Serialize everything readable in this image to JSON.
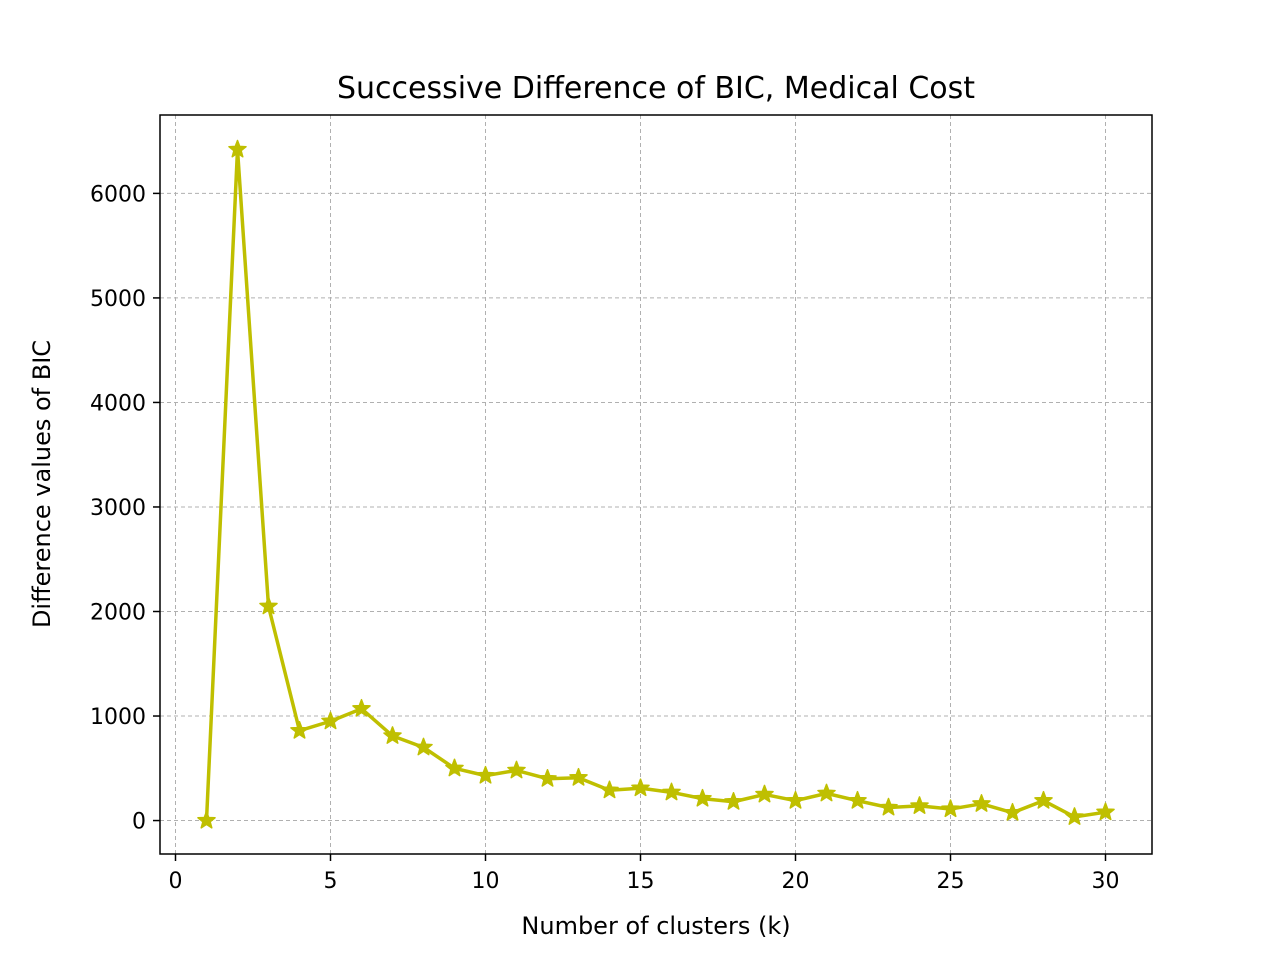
{
  "chart_data": {
    "type": "line",
    "title": "Successive Difference of BIC, Medical Cost",
    "xlabel": "Number of clusters (k)",
    "ylabel": "Difference values of BIC",
    "xlim": [
      -0.5,
      31.5
    ],
    "ylim": [
      -320,
      6750
    ],
    "xticks": [
      0,
      5,
      10,
      15,
      20,
      25,
      30
    ],
    "yticks": [
      0,
      1000,
      2000,
      3000,
      4000,
      5000,
      6000
    ],
    "grid": true,
    "marker": "star",
    "color": "#bfbf00",
    "series": [
      {
        "x": [
          1,
          2,
          3,
          4,
          5,
          6,
          7,
          8,
          9,
          10,
          11,
          12,
          13,
          14,
          15,
          16,
          17,
          18,
          19,
          20,
          21,
          22,
          23,
          24,
          25,
          26,
          27,
          28,
          29,
          30
        ],
        "values": [
          0,
          6420,
          2050,
          860,
          950,
          1070,
          810,
          700,
          500,
          430,
          480,
          400,
          410,
          290,
          310,
          270,
          210,
          180,
          250,
          190,
          260,
          190,
          125,
          140,
          110,
          160,
          75,
          190,
          35,
          80
        ]
      }
    ]
  }
}
